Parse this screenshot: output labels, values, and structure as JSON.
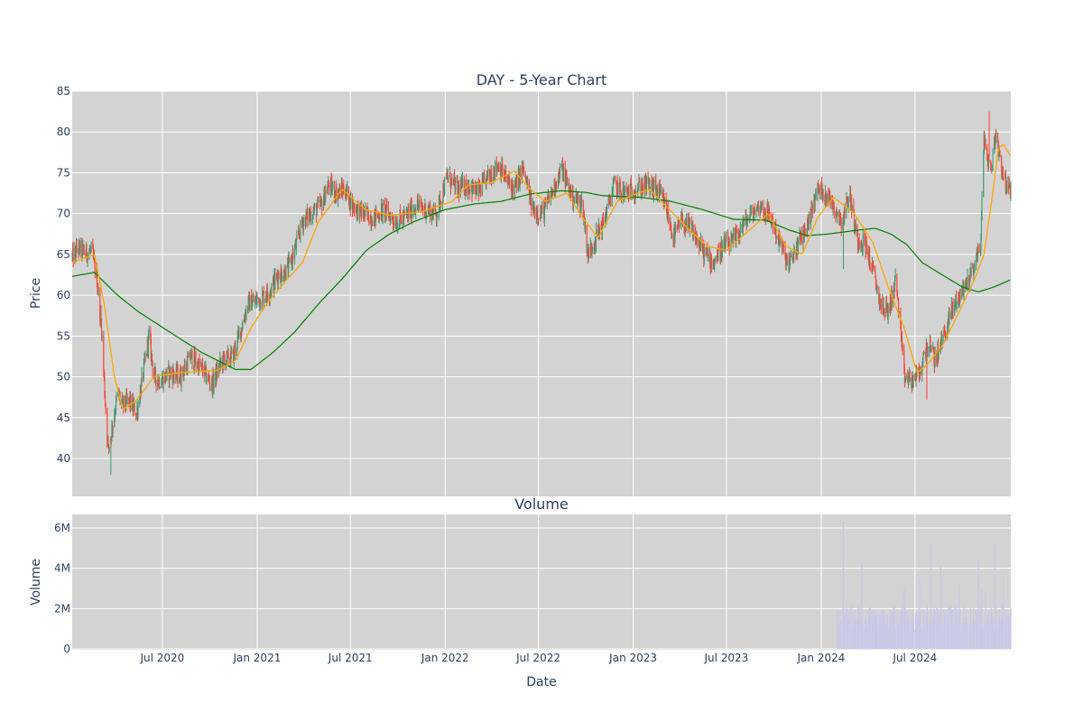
{
  "chart_data": [
    {
      "type": "candlestick",
      "title": "DAY - 5-Year Chart",
      "ylabel": "Price",
      "ylim": [
        35,
        85
      ],
      "yticks": [
        40,
        45,
        50,
        55,
        60,
        65,
        70,
        75,
        80,
        85
      ],
      "x_range": [
        "2020-01-08",
        "2025-01-03"
      ],
      "grid": true,
      "background": "#d3d3d3",
      "colors": {
        "increasing": "#3d9970",
        "decreasing": "#ff4136",
        "ma_short": "#ffa500",
        "ma_long": "#008000"
      },
      "price_path": [
        [
          "2020-01-08",
          64.6
        ],
        [
          "2020-01-20",
          65.8
        ],
        [
          "2020-02-03",
          65.2
        ],
        [
          "2020-02-15",
          65.4
        ],
        [
          "2020-02-25",
          62.0
        ],
        [
          "2020-03-05",
          56.0
        ],
        [
          "2020-03-12",
          47.0
        ],
        [
          "2020-03-18",
          41.0
        ],
        [
          "2020-03-26",
          44.0
        ],
        [
          "2020-04-05",
          48.0
        ],
        [
          "2020-04-15",
          46.5
        ],
        [
          "2020-04-28",
          47.0
        ],
        [
          "2020-05-12",
          45.5
        ],
        [
          "2020-05-25",
          50.5
        ],
        [
          "2020-06-05",
          55.0
        ],
        [
          "2020-06-15",
          50.0
        ],
        [
          "2020-06-28",
          49.5
        ],
        [
          "2020-07-15",
          50.5
        ],
        [
          "2020-08-05",
          50.0
        ],
        [
          "2020-08-25",
          52.5
        ],
        [
          "2020-09-15",
          51.0
        ],
        [
          "2020-10-05",
          49.0
        ],
        [
          "2020-10-25",
          52.0
        ],
        [
          "2020-11-15",
          52.5
        ],
        [
          "2020-12-01",
          56.0
        ],
        [
          "2020-12-15",
          59.0
        ],
        [
          "2021-01-05",
          59.5
        ],
        [
          "2021-01-25",
          60.5
        ],
        [
          "2021-02-10",
          62.5
        ],
        [
          "2021-02-28",
          63.0
        ],
        [
          "2021-03-15",
          65.5
        ],
        [
          "2021-03-30",
          69.0
        ],
        [
          "2021-04-15",
          70.0
        ],
        [
          "2021-05-05",
          71.0
        ],
        [
          "2021-05-20",
          73.5
        ],
        [
          "2021-06-05",
          72.5
        ],
        [
          "2021-06-20",
          73.0
        ],
        [
          "2021-07-05",
          71.0
        ],
        [
          "2021-07-25",
          70.0
        ],
        [
          "2021-08-15",
          69.5
        ],
        [
          "2021-09-05",
          70.5
        ],
        [
          "2021-09-25",
          69.0
        ],
        [
          "2021-10-15",
          69.5
        ],
        [
          "2021-11-05",
          71.0
        ],
        [
          "2021-11-25",
          70.5
        ],
        [
          "2021-12-15",
          70.0
        ],
        [
          "2022-01-05",
          74.5
        ],
        [
          "2022-01-25",
          73.0
        ],
        [
          "2022-02-15",
          73.5
        ],
        [
          "2022-03-05",
          72.5
        ],
        [
          "2022-03-25",
          74.5
        ],
        [
          "2022-04-15",
          76.0
        ],
        [
          "2022-05-01",
          74.0
        ],
        [
          "2022-05-15",
          73.0
        ],
        [
          "2022-06-01",
          75.5
        ],
        [
          "2022-06-20",
          70.5
        ],
        [
          "2022-07-10",
          70.0
        ],
        [
          "2022-07-30",
          73.0
        ],
        [
          "2022-08-15",
          75.5
        ],
        [
          "2022-09-05",
          72.0
        ],
        [
          "2022-09-25",
          71.0
        ],
        [
          "2022-10-05",
          65.0
        ],
        [
          "2022-10-20",
          67.0
        ],
        [
          "2022-11-05",
          69.0
        ],
        [
          "2022-11-25",
          73.5
        ],
        [
          "2022-12-15",
          72.5
        ],
        [
          "2023-01-05",
          73.0
        ],
        [
          "2023-01-25",
          73.5
        ],
        [
          "2023-02-15",
          73.0
        ],
        [
          "2023-03-05",
          71.0
        ],
        [
          "2023-03-20",
          67.0
        ],
        [
          "2023-04-05",
          69.0
        ],
        [
          "2023-04-25",
          68.0
        ],
        [
          "2023-05-15",
          65.5
        ],
        [
          "2023-06-05",
          64.0
        ],
        [
          "2023-06-25",
          66.0
        ],
        [
          "2023-07-15",
          66.5
        ],
        [
          "2023-08-01",
          68.5
        ],
        [
          "2023-08-20",
          70.0
        ],
        [
          "2023-09-05",
          71.0
        ],
        [
          "2023-09-25",
          69.5
        ],
        [
          "2023-10-15",
          66.0
        ],
        [
          "2023-10-30",
          63.5
        ],
        [
          "2023-11-15",
          66.0
        ],
        [
          "2023-12-05",
          68.5
        ],
        [
          "2023-12-25",
          73.0
        ],
        [
          "2024-01-10",
          72.5
        ],
        [
          "2024-01-25",
          71.0
        ],
        [
          "2024-02-10",
          69.0
        ],
        [
          "2024-02-25",
          72.5
        ],
        [
          "2024-03-10",
          67.0
        ],
        [
          "2024-03-25",
          66.5
        ],
        [
          "2024-04-10",
          63.0
        ],
        [
          "2024-04-25",
          59.0
        ],
        [
          "2024-05-10",
          58.0
        ],
        [
          "2024-05-25",
          62.0
        ],
        [
          "2024-06-10",
          50.0
        ],
        [
          "2024-06-25",
          49.5
        ],
        [
          "2024-07-10",
          50.5
        ],
        [
          "2024-07-25",
          54.0
        ],
        [
          "2024-08-10",
          52.0
        ],
        [
          "2024-08-25",
          55.0
        ],
        [
          "2024-09-10",
          58.0
        ],
        [
          "2024-09-25",
          60.0
        ],
        [
          "2024-10-10",
          61.5
        ],
        [
          "2024-10-25",
          64.0
        ],
        [
          "2024-11-05",
          66.0
        ],
        [
          "2024-11-12",
          79.0
        ],
        [
          "2024-11-25",
          75.0
        ],
        [
          "2024-12-05",
          80.0
        ],
        [
          "2024-12-15",
          76.0
        ],
        [
          "2024-12-25",
          73.5
        ],
        [
          "2025-01-03",
          72.5
        ]
      ],
      "ma_short_path": [
        [
          "2020-01-08",
          64.0
        ],
        [
          "2020-02-20",
          65.0
        ],
        [
          "2020-03-10",
          59.0
        ],
        [
          "2020-03-30",
          50.0
        ],
        [
          "2020-04-15",
          46.0
        ],
        [
          "2020-05-10",
          47.0
        ],
        [
          "2020-06-15",
          50.0
        ],
        [
          "2020-08-01",
          50.5
        ],
        [
          "2020-10-15",
          50.8
        ],
        [
          "2020-11-20",
          52.0
        ],
        [
          "2020-12-20",
          56.0
        ],
        [
          "2021-01-20",
          59.0
        ],
        [
          "2021-03-01",
          62.0
        ],
        [
          "2021-03-30",
          64.0
        ],
        [
          "2021-04-30",
          69.0
        ],
        [
          "2021-06-15",
          73.0
        ],
        [
          "2021-07-30",
          70.5
        ],
        [
          "2021-09-15",
          69.8
        ],
        [
          "2021-11-15",
          70.2
        ],
        [
          "2022-01-15",
          71.5
        ],
        [
          "2022-02-15",
          73.5
        ],
        [
          "2022-04-01",
          73.8
        ],
        [
          "2022-05-15",
          75.2
        ],
        [
          "2022-06-15",
          73.0
        ],
        [
          "2022-07-15",
          71.5
        ],
        [
          "2022-08-25",
          72.5
        ],
        [
          "2022-09-25",
          69.5
        ],
        [
          "2022-10-25",
          67.0
        ],
        [
          "2022-12-01",
          71.5
        ],
        [
          "2023-02-01",
          73.0
        ],
        [
          "2023-03-20",
          70.0
        ],
        [
          "2023-04-20",
          68.0
        ],
        [
          "2023-05-25",
          66.0
        ],
        [
          "2023-07-01",
          65.5
        ],
        [
          "2023-08-15",
          68.0
        ],
        [
          "2023-09-20",
          70.0
        ],
        [
          "2023-10-25",
          66.0
        ],
        [
          "2023-11-25",
          65.0
        ],
        [
          "2023-12-25",
          69.5
        ],
        [
          "2024-01-25",
          72.0
        ],
        [
          "2024-03-05",
          70.0
        ],
        [
          "2024-04-10",
          66.5
        ],
        [
          "2024-05-10",
          61.0
        ],
        [
          "2024-06-10",
          56.0
        ],
        [
          "2024-07-05",
          50.5
        ],
        [
          "2024-07-25",
          51.5
        ],
        [
          "2024-08-25",
          54.0
        ],
        [
          "2024-09-25",
          58.0
        ],
        [
          "2024-10-25",
          62.0
        ],
        [
          "2024-11-12",
          65.0
        ],
        [
          "2024-11-30",
          73.0
        ],
        [
          "2024-12-10",
          78.0
        ],
        [
          "2024-12-20",
          78.5
        ],
        [
          "2025-01-03",
          77.0
        ]
      ],
      "ma_long_path": [
        [
          "2020-01-08",
          62.3
        ],
        [
          "2020-02-20",
          62.8
        ],
        [
          "2020-04-05",
          60.0
        ],
        [
          "2020-05-15",
          58.0
        ],
        [
          "2020-07-15",
          55.5
        ],
        [
          "2020-09-15",
          53.0
        ],
        [
          "2020-11-20",
          50.9
        ],
        [
          "2020-12-20",
          50.9
        ],
        [
          "2021-02-01",
          53.0
        ],
        [
          "2021-03-15",
          55.5
        ],
        [
          "2021-05-01",
          59.0
        ],
        [
          "2021-06-15",
          62.0
        ],
        [
          "2021-08-01",
          65.5
        ],
        [
          "2021-09-15",
          67.5
        ],
        [
          "2021-11-01",
          69.0
        ],
        [
          "2022-01-01",
          70.5
        ],
        [
          "2022-03-01",
          71.2
        ],
        [
          "2022-04-20",
          71.5
        ],
        [
          "2022-06-15",
          72.4
        ],
        [
          "2022-08-15",
          72.8
        ],
        [
          "2022-10-01",
          72.6
        ],
        [
          "2022-11-01",
          72.2
        ],
        [
          "2023-01-15",
          72.0
        ],
        [
          "2023-03-15",
          71.5
        ],
        [
          "2023-05-15",
          70.5
        ],
        [
          "2023-07-15",
          69.3
        ],
        [
          "2023-09-15",
          69.2
        ],
        [
          "2023-10-30",
          68.0
        ],
        [
          "2023-12-05",
          67.3
        ],
        [
          "2024-01-15",
          67.5
        ],
        [
          "2024-03-15",
          68.0
        ],
        [
          "2024-04-15",
          68.2
        ],
        [
          "2024-05-15",
          67.5
        ],
        [
          "2024-06-15",
          66.2
        ],
        [
          "2024-07-15",
          64.0
        ],
        [
          "2024-08-15",
          62.8
        ],
        [
          "2024-10-01",
          61.0
        ],
        [
          "2024-11-01",
          60.4
        ],
        [
          "2024-12-01",
          61.0
        ],
        [
          "2025-01-03",
          61.9
        ]
      ],
      "extreme_lows": [
        [
          "2020-03-23",
          38.0
        ],
        [
          "2024-02-13",
          63.2
        ],
        [
          "2024-07-24",
          47.2
        ]
      ],
      "extreme_highs": [
        [
          "2024-11-22",
          82.5
        ]
      ]
    },
    {
      "type": "bar",
      "title": "Volume",
      "xlabel": "Date",
      "ylabel": "Volume",
      "ylim": [
        0,
        6800000
      ],
      "yticks": [
        0,
        2000000,
        4000000,
        6000000
      ],
      "ytick_labels": [
        "0",
        "2M",
        "4M",
        "6M"
      ],
      "x_ticks": [
        [
          "2020-07-01",
          "Jul 2020"
        ],
        [
          "2021-01-01",
          "Jan 2021"
        ],
        [
          "2021-07-01",
          "Jul 2021"
        ],
        [
          "2022-01-01",
          "Jan 2022"
        ],
        [
          "2022-07-01",
          "Jul 2022"
        ],
        [
          "2023-01-01",
          "Jan 2023"
        ],
        [
          "2023-07-01",
          "Jul 2023"
        ],
        [
          "2024-01-01",
          "Jan 2024"
        ],
        [
          "2024-07-01",
          "Jul 2024"
        ]
      ],
      "background": "#d3d3d3",
      "bar_color": "#c8c8e8",
      "data_start": "2024-02-01",
      "typical_range": [
        900000,
        2200000
      ],
      "peaks": [
        [
          "2024-02-13",
          6300000
        ],
        [
          "2024-03-20",
          4200000
        ],
        [
          "2024-04-20",
          5000000
        ],
        [
          "2024-06-10",
          3100000
        ],
        [
          "2024-07-10",
          3500000
        ],
        [
          "2024-08-01",
          5300000
        ],
        [
          "2024-08-20",
          4100000
        ],
        [
          "2024-09-25",
          3200000
        ],
        [
          "2024-11-01",
          4400000
        ],
        [
          "2024-11-07",
          3000000
        ],
        [
          "2024-11-15",
          2800000
        ],
        [
          "2024-12-03",
          5300000
        ],
        [
          "2024-12-20",
          3600000
        ]
      ]
    }
  ]
}
